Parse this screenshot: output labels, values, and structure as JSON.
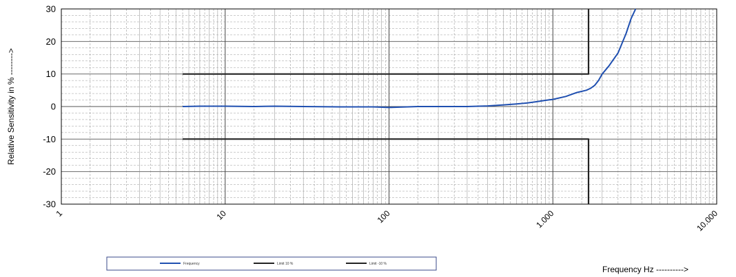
{
  "chart_data": {
    "type": "line",
    "title": "",
    "xlabel": "Frequency Hz  ---------->",
    "ylabel": "Relative Sensitivity in  %  -------->",
    "x_scale": "log",
    "xlim": [
      1,
      10000
    ],
    "ylim": [
      -30,
      30
    ],
    "y_ticks": [
      30,
      20,
      10,
      0,
      -10,
      -20,
      -30
    ],
    "x_ticks": [
      {
        "value": 1,
        "label": "1"
      },
      {
        "value": 10,
        "label": "10"
      },
      {
        "value": 100,
        "label": "100"
      },
      {
        "value": 1000,
        "label": "1.000"
      },
      {
        "value": 10000,
        "label": "10.000"
      }
    ],
    "grid": true,
    "legend_position": "bottom-left",
    "series": [
      {
        "name": "Frequency",
        "color": "#1f4fb0",
        "x": [
          5.5,
          7,
          10,
          15,
          20,
          30,
          50,
          80,
          100,
          150,
          200,
          300,
          400,
          500,
          600,
          700,
          800,
          900,
          1000,
          1200,
          1400,
          1600,
          1700,
          1800,
          1900,
          2000,
          2200,
          2500,
          2800,
          3000,
          3200
        ],
        "y": [
          0,
          0.1,
          0.1,
          0,
          0.1,
          0,
          -0.1,
          -0.1,
          -0.3,
          0,
          0,
          0,
          0.2,
          0.5,
          0.8,
          1.1,
          1.5,
          1.9,
          2.2,
          3.1,
          4.3,
          5.0,
          5.6,
          6.5,
          8.0,
          10.0,
          12.5,
          16.5,
          22.5,
          27.0,
          30.0
        ]
      },
      {
        "name": "Limit 10 %",
        "color": "#222222",
        "x": [
          5.5,
          1650,
          1650
        ],
        "y": [
          10,
          10,
          30
        ]
      },
      {
        "name": "Limit -10 %",
        "color": "#222222",
        "x": [
          5.5,
          1650,
          1650
        ],
        "y": [
          -10,
          -10,
          -30
        ]
      }
    ]
  },
  "legend": {
    "items": [
      {
        "label": "Frequency",
        "color": "#1f4fb0"
      },
      {
        "label": "Limit 10 %",
        "color": "#222222"
      },
      {
        "label": "Limit -10 %",
        "color": "#222222"
      }
    ]
  }
}
